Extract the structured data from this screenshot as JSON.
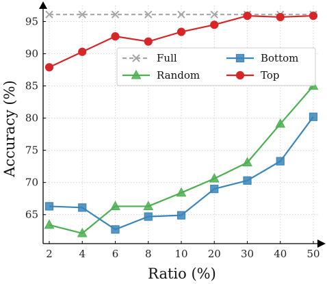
{
  "chart_data": {
    "type": "line",
    "categories": [
      "2",
      "4",
      "6",
      "8",
      "10",
      "20",
      "30",
      "40",
      "50"
    ],
    "xlabel": "Ratio (%)",
    "ylabel": "Accuracy (%)",
    "ylim": [
      60.5,
      97.5
    ],
    "yticks": [
      65,
      70,
      75,
      80,
      85,
      90,
      95
    ],
    "grid": true,
    "legend_placement": "upper-right",
    "series": [
      {
        "name": "Full",
        "color": "#a6a6a6",
        "marker": "x",
        "dashed": true,
        "values": [
          96.1,
          96.1,
          96.1,
          96.1,
          96.1,
          96.1,
          96.1,
          96.1,
          96.1
        ]
      },
      {
        "name": "Random",
        "color": "#4caf50",
        "marker": "triangle",
        "dashed": false,
        "values": [
          63.4,
          62.1,
          66.3,
          66.3,
          68.4,
          70.6,
          73.1,
          79.1,
          85.0
        ]
      },
      {
        "name": "Bottom",
        "color": "#3a85b9",
        "marker": "square",
        "dashed": false,
        "values": [
          66.3,
          66.1,
          62.7,
          64.7,
          64.9,
          69.0,
          70.3,
          73.3,
          80.2
        ]
      },
      {
        "name": "Top",
        "color": "#d62728",
        "marker": "circle",
        "dashed": false,
        "values": [
          87.9,
          90.3,
          92.7,
          91.9,
          93.4,
          94.5,
          95.9,
          95.7,
          95.9
        ]
      }
    ],
    "legend_order": [
      "Full",
      "Bottom",
      "Random",
      "Top"
    ]
  }
}
